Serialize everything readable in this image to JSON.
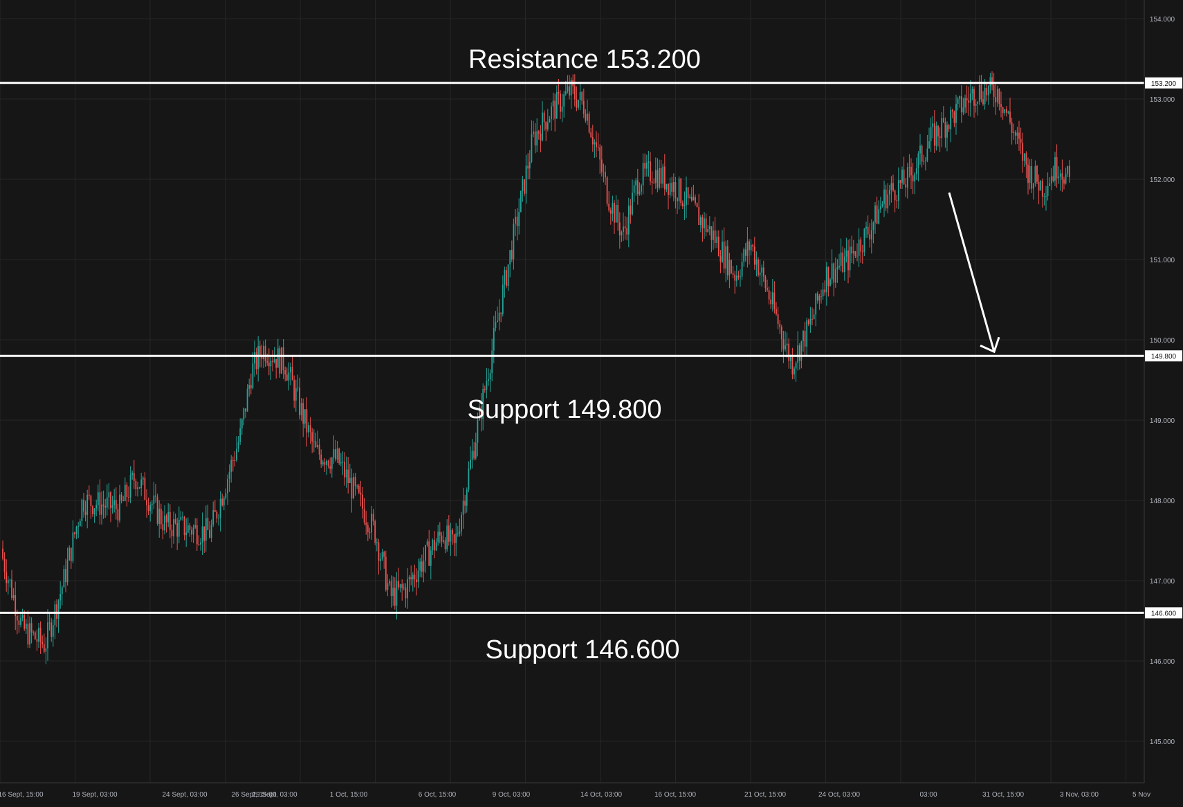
{
  "chart_data": {
    "type": "candlestick",
    "instrument": "",
    "y_axis": {
      "ticks": [
        "154.000",
        "153.000",
        "152.000",
        "151.000",
        "150.000",
        "149.000",
        "148.000",
        "147.000",
        "146.000",
        "145.000"
      ],
      "ylim": [
        144.5,
        154.25
      ]
    },
    "x_axis": {
      "ticks": [
        "16 Sept, 15:00",
        "19 Sept, 03:00",
        "24 Sept, 03:00",
        "26 Sept, 15:00",
        "29 Sept, 03:00",
        "1 Oct, 15:00",
        "6 Oct, 15:00",
        "9 Oct, 03:00",
        "14 Oct, 03:00",
        "16 Oct, 15:00",
        "21 Oct, 15:00",
        "24 Oct, 03:00",
        "03:00",
        "31 Oct, 15:00",
        "3 Nov, 03:00",
        "5 Nov"
      ]
    },
    "grid": true,
    "levels": [
      {
        "type": "resistance",
        "value": 153.2,
        "axis_label": "153.200",
        "annotation": "Resistance 153.200"
      },
      {
        "type": "support",
        "value": 149.8,
        "axis_label": "149.800",
        "annotation": "Support 149.800"
      },
      {
        "type": "support",
        "value": 146.6,
        "axis_label": "146.600",
        "annotation": "Support 146.600"
      }
    ],
    "projection_arrow": {
      "from_value": 151.85,
      "to_value": 149.8
    },
    "price_path": [
      [
        0,
        147.4
      ],
      [
        0.3,
        146.4
      ],
      [
        0.6,
        146.2
      ],
      [
        0.85,
        147.0
      ],
      [
        1.1,
        148.0
      ],
      [
        1.6,
        147.9
      ],
      [
        1.8,
        148.3
      ],
      [
        2.2,
        147.7
      ],
      [
        2.8,
        147.6
      ],
      [
        3.2,
        148.8
      ],
      [
        3.35,
        149.6
      ],
      [
        3.5,
        149.9
      ],
      [
        3.8,
        149.7
      ],
      [
        4.2,
        148.6
      ],
      [
        4.5,
        148.5
      ],
      [
        5.0,
        147.6
      ],
      [
        5.2,
        146.8
      ],
      [
        5.4,
        146.9
      ],
      [
        5.6,
        147.2
      ],
      [
        5.9,
        147.6
      ],
      [
        6.05,
        147.4
      ],
      [
        6.4,
        149.1
      ],
      [
        6.7,
        150.6
      ],
      [
        7.1,
        152.5
      ],
      [
        7.3,
        152.8
      ],
      [
        7.6,
        153.1
      ],
      [
        7.8,
        152.9
      ],
      [
        8.1,
        151.8
      ],
      [
        8.3,
        151.3
      ],
      [
        8.5,
        152.0
      ],
      [
        8.7,
        152.1
      ],
      [
        9.0,
        151.9
      ],
      [
        9.5,
        151.3
      ],
      [
        9.8,
        150.8
      ],
      [
        10.0,
        151.2
      ],
      [
        10.3,
        150.4
      ],
      [
        10.55,
        149.7
      ],
      [
        10.8,
        150.2
      ],
      [
        11.0,
        150.8
      ],
      [
        11.3,
        151.0
      ],
      [
        11.6,
        151.4
      ],
      [
        11.8,
        151.8
      ],
      [
        12.1,
        152.0
      ],
      [
        12.4,
        152.5
      ],
      [
        12.7,
        152.8
      ],
      [
        13.0,
        153.1
      ],
      [
        13.3,
        153.1
      ],
      [
        13.5,
        152.6
      ],
      [
        13.7,
        152.1
      ],
      [
        13.9,
        151.9
      ],
      [
        14.1,
        152.2
      ],
      [
        14.25,
        151.95
      ]
    ],
    "up_color": "#26a69a",
    "down_color": "#ef5350"
  }
}
